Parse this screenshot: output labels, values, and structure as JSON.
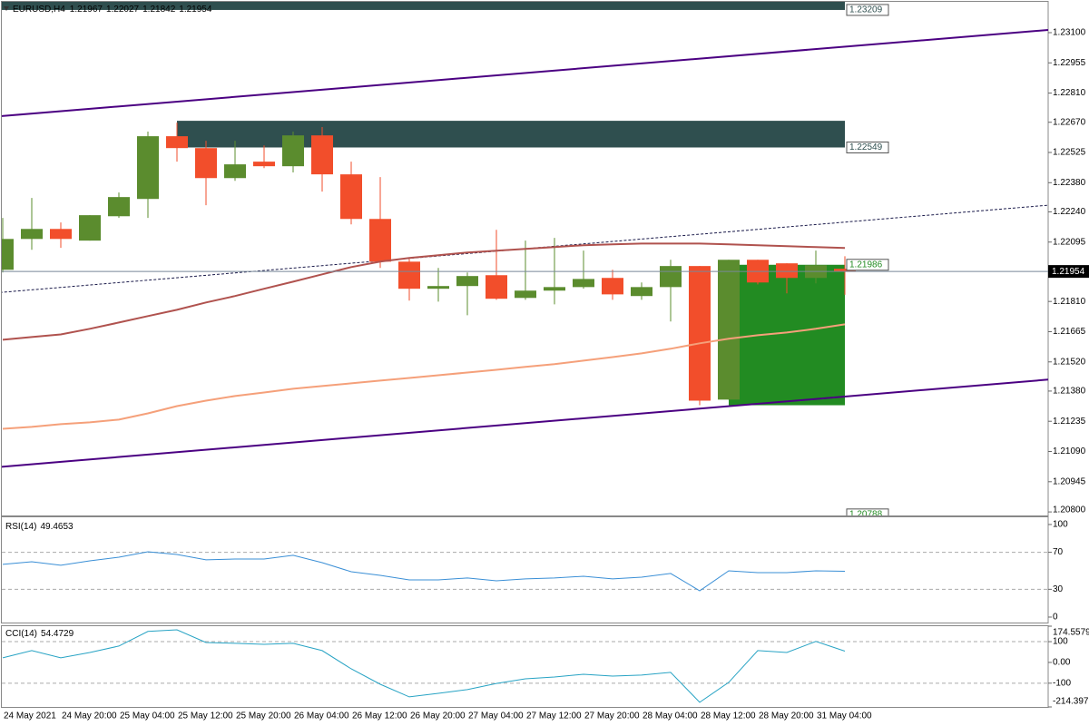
{
  "chart_data": [
    {
      "type": "candlestick",
      "title": "EURUSD,H4",
      "categories": [
        "24 May 2021",
        null,
        "24 May 20:00",
        null,
        "25 May 04:00",
        null,
        "25 May 12:00",
        null,
        "25 May 20:00",
        null,
        "26 May 04:00",
        null,
        "26 May 12:00",
        null,
        "26 May 20:00",
        null,
        "27 May 04:00",
        null,
        "27 May 12:00",
        null,
        "27 May 20:00",
        null,
        "28 May 04:00",
        null,
        "28 May 12:00",
        null,
        "28 May 20:00",
        null,
        "31 May 04:00",
        null
      ],
      "open": [
        1.21962,
        1.2211,
        1.22158,
        1.22102,
        1.22219,
        1.22302,
        1.22603,
        1.22546,
        1.22402,
        1.22481,
        1.22459,
        1.22607,
        1.2242,
        1.22206,
        1.22001,
        1.21871,
        1.21884,
        1.21936,
        1.21827,
        1.21862,
        1.21879,
        1.21923,
        1.21836,
        1.21879,
        1.2198,
        1.21339,
        1.2201,
        1.21993,
        1.21923,
        1.21967
      ],
      "high": [
        1.22211,
        1.22307,
        1.22189,
        1.22224,
        1.22333,
        1.22625,
        1.22668,
        1.22581,
        1.22581,
        1.22559,
        1.22625,
        1.22647,
        1.22481,
        1.22407,
        1.22014,
        1.21971,
        1.21949,
        1.22154,
        1.22102,
        1.22115,
        1.22054,
        1.21962,
        1.21901,
        1.2201,
        1.2198,
        1.2201,
        1.2201,
        1.21993,
        1.22054,
        1.22027
      ],
      "low": [
        1.21949,
        1.22058,
        1.22067,
        1.22102,
        1.22211,
        1.22211,
        1.22481,
        1.22272,
        1.22389,
        1.2245,
        1.22429,
        1.22337,
        1.2218,
        1.21971,
        1.21814,
        1.21809,
        1.21744,
        1.21818,
        1.21818,
        1.21796,
        1.21871,
        1.21818,
        1.21818,
        1.21714,
        1.21312,
        1.21339,
        1.21892,
        1.21849,
        1.21897,
        1.21842
      ],
      "close": [
        1.2211,
        1.22158,
        1.2211,
        1.22224,
        1.22311,
        1.22603,
        1.22546,
        1.22402,
        1.22468,
        1.22459,
        1.22607,
        1.2242,
        1.22206,
        1.22001,
        1.21871,
        1.21884,
        1.21932,
        1.21823,
        1.21862,
        1.21879,
        1.21918,
        1.21844,
        1.21879,
        1.2198,
        1.21334,
        1.2201,
        1.21901,
        1.21923,
        1.21984,
        1.21954
      ],
      "up_color": "#5b8c2e",
      "down_color": "#f24e2b",
      "ylim": [
        1.20783,
        1.23248
      ],
      "yticks": [
        {
          "value": 1.231,
          "label": "1.23100"
        },
        1.22955,
        {
          "value": 1.2281,
          "label": "1.22810"
        },
        {
          "value": 1.2267,
          "label": "1.22670"
        },
        1.22525,
        {
          "value": 1.2238,
          "label": "1.22380"
        },
        {
          "value": 1.2224,
          "label": "1.22240"
        },
        1.22095,
        {
          "value": 1.2181,
          "label": "1.21810"
        },
        1.21665,
        {
          "value": 1.2152,
          "label": "1.21520"
        },
        {
          "value": 1.2138,
          "label": "1.21380"
        },
        1.21235,
        {
          "value": 1.2109,
          "label": "1.21090"
        },
        1.20945,
        {
          "value": 1.208,
          "label": "1.20800"
        }
      ],
      "zones": [
        {
          "color": "#2f4f4f",
          "start": -0.1,
          "end": 29,
          "price": 1.23209,
          "edge": 1.2326
        },
        {
          "color": "#2f4f4f",
          "start": 6,
          "end": 29,
          "price": 1.22549,
          "edge": 1.22677
        },
        {
          "color": "#228b22",
          "start": 25,
          "end": 29,
          "price": 1.21986,
          "edge": 1.21312
        }
      ],
      "levels": [
        {
          "color": "#228b22",
          "end": 29,
          "price": 1.20788
        }
      ],
      "trendlines": [
        {
          "color": "#4b0082",
          "dash": false,
          "x": [
            -0.1,
            36
          ],
          "values": [
            1.22699,
            1.23113
          ]
        },
        {
          "color": "#4b0082",
          "dash": false,
          "x": [
            -0.1,
            36
          ],
          "values": [
            1.21016,
            1.21435
          ]
        },
        {
          "color": "#1a1a4a",
          "dash": true,
          "x": [
            -0.1,
            36
          ],
          "values": [
            1.21853,
            1.22272
          ]
        }
      ],
      "lines": [
        {
          "color": "#b0524e",
          "values": [
            1.21626,
            1.21639,
            1.21652,
            1.21679,
            1.21709,
            1.2174,
            1.2177,
            1.21805,
            1.21836,
            1.21871,
            1.21905,
            1.2194,
            1.21975,
            1.22001,
            1.22019,
            1.22032,
            1.22045,
            1.22054,
            1.22062,
            1.22071,
            1.2208,
            1.22084,
            1.22088,
            1.22088,
            1.22088,
            1.22084,
            1.2208,
            1.22075,
            1.22071,
            1.22067
          ]
        },
        {
          "color": "#f5a07a",
          "values": [
            1.21199,
            1.21208,
            1.21221,
            1.2123,
            1.21243,
            1.21273,
            1.21308,
            1.21334,
            1.21356,
            1.21373,
            1.21391,
            1.21404,
            1.21417,
            1.2143,
            1.21443,
            1.21456,
            1.21469,
            1.21482,
            1.21496,
            1.21509,
            1.21526,
            1.21543,
            1.21561,
            1.21583,
            1.21609,
            1.21631,
            1.21648,
            1.21661,
            1.21679,
            1.217
          ]
        }
      ],
      "price_line_color": "#778899"
    },
    {
      "type": "line",
      "title": "RSI(14)",
      "color": "#3a8fd6",
      "values": [
        56.9,
        59.8,
        55.9,
        60.8,
        64.7,
        70.6,
        67.6,
        61.8,
        62.7,
        62.7,
        66.7,
        58.8,
        49.0,
        45.1,
        40.2,
        40.2,
        42.2,
        39.2,
        41.2,
        42.2,
        44.1,
        41.2,
        43.1,
        47.1,
        28.4,
        50.0,
        48.0,
        48.0,
        50.0,
        49.4653
      ],
      "ylim": [
        -5.9,
        107.8
      ],
      "yticks": [
        0,
        30,
        70,
        100
      ],
      "levels": [
        30,
        70
      ]
    },
    {
      "type": "line",
      "title": "CCI(14)",
      "color": "#27a3c4",
      "values": [
        22,
        57,
        22,
        48,
        79,
        149,
        157,
        96,
        92,
        87,
        92,
        57,
        -31,
        -105,
        -166,
        -149,
        -131,
        -101,
        -79,
        -70,
        -57,
        -66,
        -61,
        -48,
        -192,
        -96,
        57,
        48,
        101,
        54.4729
      ],
      "ylim": [
        -214.3971,
        174.5579
      ],
      "yticks": [
        -214.3971,
        -100,
        {
          "value": 0,
          "label": "0.00"
        },
        100,
        174.5579
      ],
      "levels": [
        -100,
        100
      ]
    }
  ]
}
